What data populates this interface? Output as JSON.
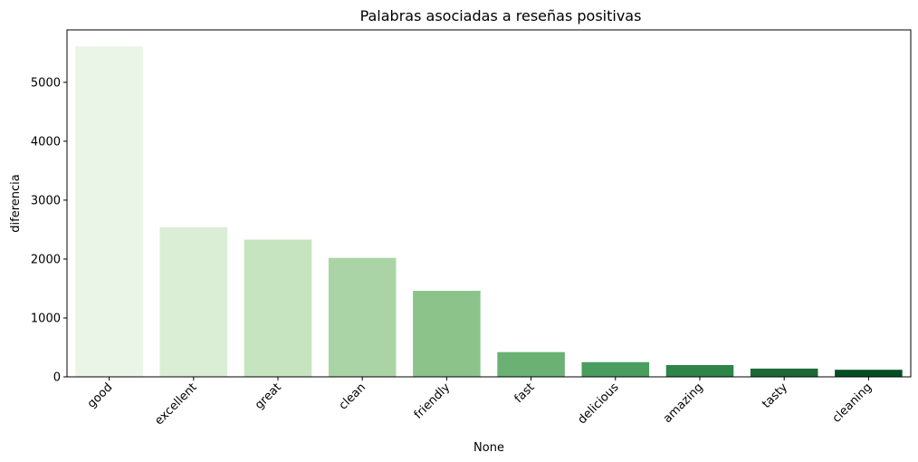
{
  "chart_data": {
    "type": "bar",
    "title": "Palabras asociadas a reseñas positivas",
    "xlabel": "None",
    "ylabel": "diferencia",
    "categories": [
      "good",
      "excellent",
      "great",
      "clean",
      "friendly",
      "fast",
      "delicious",
      "amazing",
      "tasty",
      "cleaning"
    ],
    "values": [
      5610,
      2540,
      2330,
      2020,
      1460,
      420,
      250,
      200,
      140,
      120
    ],
    "colors": [
      "#EAF5E7",
      "#D9EED4",
      "#C5E4BF",
      "#ABD4A6",
      "#8CC38A",
      "#6AB173",
      "#4A9D5F",
      "#2E8449",
      "#1B6A35",
      "#044E22"
    ],
    "ylim": [
      0,
      5890
    ],
    "yticks": [
      "0",
      "1000",
      "2000",
      "3000",
      "4000",
      "5000"
    ],
    "grid": false,
    "legend": "none"
  }
}
